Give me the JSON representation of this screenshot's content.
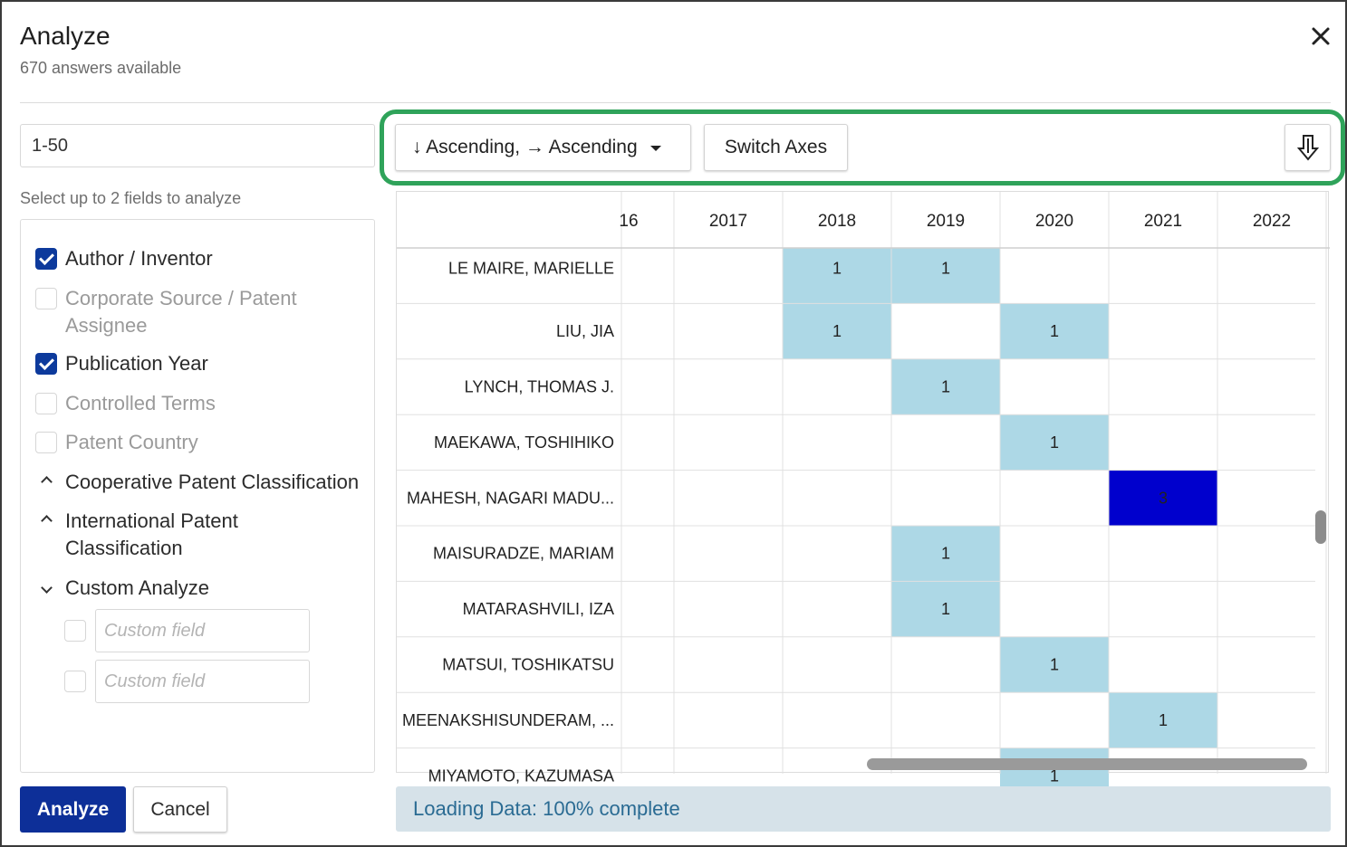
{
  "header": {
    "title": "Analyze",
    "subtitle": "670 answers available"
  },
  "range": {
    "value": "1-50"
  },
  "hint": "Select up to 2 fields to analyze",
  "fields": [
    {
      "label": "Author / Inventor",
      "checked": true
    },
    {
      "label": "Corporate Source / Patent Assignee",
      "checked": false
    },
    {
      "label": "Publication Year",
      "checked": true
    },
    {
      "label": "Controlled Terms",
      "checked": false
    },
    {
      "label": "Patent Country",
      "checked": false
    }
  ],
  "groups": [
    {
      "label": "Cooperative Patent Classification",
      "state": "collapsed"
    },
    {
      "label": "International Patent Classification",
      "state": "collapsed"
    },
    {
      "label": "Custom Analyze",
      "state": "expanded"
    }
  ],
  "custom_fields": [
    {
      "placeholder": "Custom field"
    },
    {
      "placeholder": "Custom field"
    }
  ],
  "buttons": {
    "analyze": "Analyze",
    "cancel": "Cancel",
    "sort": "↓ Ascending, → Ascending",
    "switch_axes": "Switch Axes"
  },
  "icons": {
    "close": "close-icon",
    "download": "download-icon",
    "sort_caret": "caret-down-icon"
  },
  "colors": {
    "primary": "#0d2f98",
    "highlight_border": "#2fa35a",
    "cell_light": "#add8e6",
    "cell_dark": "#0000cd",
    "status_bg": "#d6e2e9",
    "status_text": "#2a6b93"
  },
  "matrix": {
    "columns": [
      "16",
      "2017",
      "2018",
      "2019",
      "2020",
      "2021",
      "2022"
    ],
    "rows": [
      {
        "label": "LE MAIRE, MARIELLE",
        "values": [
          "",
          "",
          "1",
          "1",
          "",
          "",
          ""
        ]
      },
      {
        "label": "LIU, JIA",
        "values": [
          "",
          "",
          "1",
          "",
          "1",
          "",
          ""
        ]
      },
      {
        "label": "LYNCH, THOMAS J.",
        "values": [
          "",
          "",
          "",
          "1",
          "",
          "",
          ""
        ]
      },
      {
        "label": "MAEKAWA, TOSHIHIKO",
        "values": [
          "",
          "",
          "",
          "",
          "1",
          "",
          ""
        ]
      },
      {
        "label": "MAHESH, NAGARI MADU...",
        "values": [
          "",
          "",
          "",
          "",
          "",
          "3",
          ""
        ]
      },
      {
        "label": "MAISURADZE, MARIAM",
        "values": [
          "",
          "",
          "",
          "1",
          "",
          "",
          ""
        ]
      },
      {
        "label": "MATARASHVILI, IZA",
        "values": [
          "",
          "",
          "",
          "1",
          "",
          "",
          ""
        ]
      },
      {
        "label": "MATSUI, TOSHIKATSU",
        "values": [
          "",
          "",
          "",
          "",
          "1",
          "",
          ""
        ]
      },
      {
        "label": "MEENAKSHISUNDERAM, ...",
        "values": [
          "",
          "",
          "",
          "",
          "",
          "1",
          ""
        ]
      },
      {
        "label": "MIYAMOTO, KAZUMASA",
        "values": [
          "",
          "",
          "",
          "",
          "1",
          "",
          ""
        ]
      }
    ]
  },
  "status": "Loading Data: 100% complete"
}
